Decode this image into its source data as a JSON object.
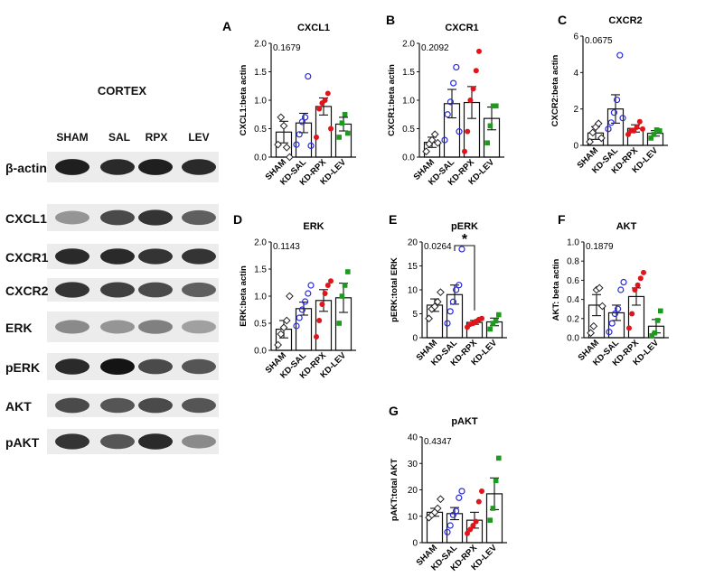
{
  "blot": {
    "title": "CORTEX",
    "lanes": [
      "SHAM",
      "SAL",
      "RPX",
      "LEV"
    ],
    "rows": [
      {
        "label": "β-actin",
        "intensity": [
          0.95,
          0.9,
          0.95,
          0.9
        ]
      },
      {
        "label": "CXCL1",
        "intensity": [
          0.4,
          0.75,
          0.85,
          0.65
        ]
      },
      {
        "label": "CXCR1",
        "intensity": [
          0.9,
          0.9,
          0.85,
          0.85
        ]
      },
      {
        "label": "CXCR2",
        "intensity": [
          0.85,
          0.8,
          0.75,
          0.65
        ]
      },
      {
        "label": "ERK",
        "intensity": [
          0.45,
          0.4,
          0.5,
          0.35
        ]
      },
      {
        "label": "pERK",
        "intensity": [
          0.9,
          1.0,
          0.75,
          0.7
        ]
      },
      {
        "label": "AKT",
        "intensity": [
          0.75,
          0.7,
          0.75,
          0.7
        ]
      },
      {
        "label": "pAKT",
        "intensity": [
          0.85,
          0.7,
          0.9,
          0.45
        ]
      }
    ]
  },
  "chart_data": [
    {
      "panel": "A",
      "title": "CXCL1",
      "type": "bar",
      "ylabel": "CXCL1:beta actin",
      "ylim": [
        0,
        2.0
      ],
      "yticks": [
        "0.0",
        "0.5",
        "1.0",
        "1.5",
        "2.0"
      ],
      "pvalue": "0.1679",
      "categories": [
        "SHAM",
        "KD-SAL",
        "KD-RPX",
        "KD-LEV"
      ],
      "values": [
        0.44,
        0.6,
        0.89,
        0.58
      ],
      "sem": [
        0.19,
        0.17,
        0.15,
        0.12
      ],
      "points": [
        [
          0.22,
          0.7,
          0.55,
          0.17,
          0.0
        ],
        [
          0.22,
          0.4,
          0.62,
          0.7,
          1.42,
          0.2
        ],
        [
          0.35,
          0.85,
          0.95,
          1.0,
          1.12,
          0.5
        ],
        [
          0.35,
          0.6,
          0.75,
          0.42
        ]
      ],
      "annotation": ""
    },
    {
      "panel": "B",
      "title": "CXCR1",
      "type": "bar",
      "ylabel": "CXCR1:beta actin",
      "ylim": [
        0,
        2.0
      ],
      "yticks": [
        "0.0",
        "0.5",
        "1.0",
        "1.5",
        "2.0"
      ],
      "pvalue": "0.2092",
      "categories": [
        "SHAM",
        "KD-SAL",
        "KD-RPX",
        "KD-LEV"
      ],
      "values": [
        0.26,
        0.94,
        0.96,
        0.68
      ],
      "sem": [
        0.09,
        0.25,
        0.28,
        0.2
      ],
      "points": [
        [
          0.1,
          0.23,
          0.3,
          0.4,
          0.25
        ],
        [
          0.3,
          0.75,
          0.97,
          1.3,
          1.58,
          0.45
        ],
        [
          0.1,
          0.45,
          1.0,
          1.2,
          1.52,
          1.86
        ],
        [
          0.25,
          0.55,
          0.9,
          0.9
        ]
      ],
      "annotation": ""
    },
    {
      "panel": "C",
      "title": "CXCR2",
      "type": "bar",
      "ylabel": "CXCR2:beta actin",
      "ylim": [
        0,
        6
      ],
      "yticks": [
        "0",
        "2",
        "4",
        "6"
      ],
      "pvalue": "0.0675",
      "categories": [
        "SHAM",
        "KD-SAL",
        "KD-RPX",
        "KD-LEV"
      ],
      "values": [
        0.68,
        2.0,
        0.93,
        0.66
      ],
      "sem": [
        0.35,
        0.78,
        0.2,
        0.15
      ],
      "points": [
        [
          0.2,
          0.7,
          1.0,
          1.2,
          0.4
        ],
        [
          0.9,
          1.25,
          1.8,
          2.5,
          4.95,
          1.5
        ],
        [
          0.6,
          0.8,
          0.8,
          1.0,
          1.3,
          0.9
        ],
        [
          0.4,
          0.6,
          0.85,
          0.8
        ]
      ],
      "annotation": ""
    },
    {
      "panel": "D",
      "title": "ERK",
      "type": "bar",
      "ylabel": "ERK:beta actin",
      "ylim": [
        0,
        2.0
      ],
      "yticks": [
        "0.0",
        "0.5",
        "1.0",
        "1.5",
        "2.0"
      ],
      "pvalue": "0.1143",
      "categories": [
        "SHAM",
        "KD-SAL",
        "KD-RPX",
        "KD-LEV"
      ],
      "values": [
        0.39,
        0.77,
        0.92,
        0.97
      ],
      "sem": [
        0.16,
        0.12,
        0.2,
        0.27
      ],
      "points": [
        [
          0.1,
          0.3,
          0.42,
          0.55,
          1.0
        ],
        [
          0.45,
          0.6,
          0.75,
          0.9,
          1.05,
          1.2
        ],
        [
          0.25,
          0.55,
          0.85,
          1.05,
          1.2,
          1.28
        ],
        [
          0.5,
          1.0,
          1.2,
          1.45
        ]
      ],
      "annotation": ""
    },
    {
      "panel": "E",
      "title": "pERK",
      "type": "bar",
      "ylabel": "pERK:total ERK",
      "ylim": [
        0,
        20
      ],
      "yticks": [
        "0",
        "5",
        "10",
        "15",
        "20"
      ],
      "pvalue": "0.0264",
      "categories": [
        "SHAM",
        "KD-SAL",
        "KD-RPX",
        "KD-LEV"
      ],
      "values": [
        6.8,
        9.0,
        3.2,
        3.3
      ],
      "sem": [
        1.3,
        2.0,
        0.4,
        0.8
      ],
      "points": [
        [
          4.0,
          6.0,
          6.5,
          7.5,
          9.5
        ],
        [
          3.0,
          5.5,
          7.5,
          10.0,
          11.0,
          18.5
        ],
        [
          2.2,
          2.8,
          3.0,
          3.4,
          3.8,
          4.0
        ],
        [
          1.8,
          3.0,
          3.5,
          4.8
        ]
      ],
      "annotation": "*",
      "sig_pair": [
        1,
        2
      ]
    },
    {
      "panel": "F",
      "title": "AKT",
      "type": "bar",
      "ylabel": "AKT: beta actin",
      "ylim": [
        0,
        1.0
      ],
      "yticks": [
        "0.0",
        "0.2",
        "0.4",
        "0.6",
        "0.8",
        "1.0"
      ],
      "pvalue": "0.1879",
      "categories": [
        "SHAM",
        "KD-SAL",
        "KD-RPX",
        "KD-LEV"
      ],
      "values": [
        0.34,
        0.26,
        0.43,
        0.12
      ],
      "sem": [
        0.11,
        0.08,
        0.09,
        0.07
      ],
      "points": [
        [
          0.05,
          0.12,
          0.5,
          0.52,
          0.33
        ],
        [
          0.06,
          0.15,
          0.25,
          0.3,
          0.5,
          0.58
        ],
        [
          0.1,
          0.25,
          0.5,
          0.55,
          0.62,
          0.68
        ],
        [
          0.02,
          0.05,
          0.18,
          0.28
        ]
      ],
      "annotation": ""
    },
    {
      "panel": "G",
      "title": "pAKT",
      "type": "bar",
      "ylabel": "pAKT:total AKT",
      "ylim": [
        0,
        40
      ],
      "yticks": [
        "0",
        "10",
        "20",
        "30",
        "40"
      ],
      "pvalue": "0.4347",
      "categories": [
        "SHAM",
        "KD-SAL",
        "KD-RPX",
        "KD-LEV"
      ],
      "values": [
        11.5,
        11.0,
        8.5,
        18.5
      ],
      "sem": [
        1.5,
        2.3,
        3.0,
        6.0
      ],
      "points": [
        [
          9.5,
          10.5,
          11.5,
          13.0,
          16.5
        ],
        [
          4.0,
          6.5,
          10.5,
          12.0,
          17.0,
          19.5
        ],
        [
          3.5,
          5.0,
          6.5,
          8.0,
          15.5,
          19.5
        ],
        [
          8.5,
          13.0,
          23.5,
          32.0
        ]
      ],
      "annotation": ""
    }
  ],
  "colors": {
    "SHAM": "#222222",
    "KD-SAL": "#2a2adb",
    "KD-RPX": "#e0151b",
    "KD-LEV": "#1e9a1e",
    "axis": "#111111"
  }
}
